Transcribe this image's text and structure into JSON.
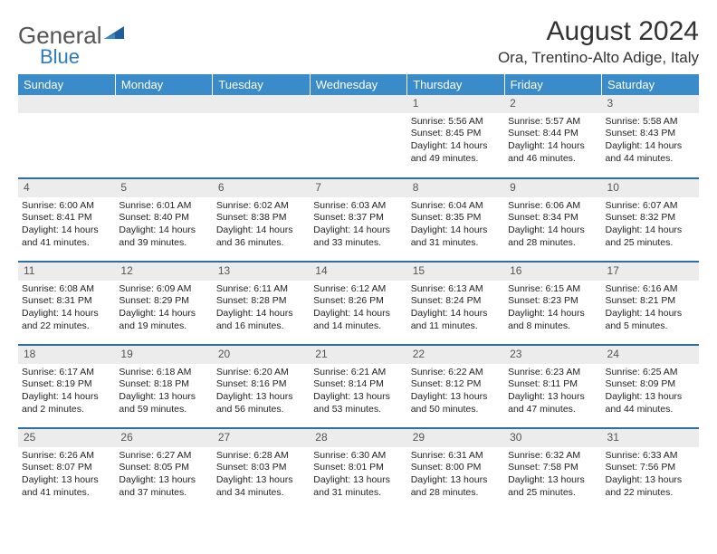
{
  "brand": {
    "first": "General",
    "second": "Blue"
  },
  "title": "August 2024",
  "location": "Ora, Trentino-Alto Adige, Italy",
  "colors": {
    "header_bg": "#3a8bc9",
    "header_text": "#ffffff",
    "row_border": "#2f6da3",
    "daynum_bg": "#ececec",
    "logo_triangle": "#1e5fa0"
  },
  "fonts": {
    "title_size": 30,
    "location_size": 17,
    "header_size": 13,
    "cell_size": 10.5
  },
  "weekdays": [
    "Sunday",
    "Monday",
    "Tuesday",
    "Wednesday",
    "Thursday",
    "Friday",
    "Saturday"
  ],
  "weeks": [
    [
      null,
      null,
      null,
      null,
      {
        "n": "1",
        "sr": "Sunrise: 5:56 AM",
        "ss": "Sunset: 8:45 PM",
        "d1": "Daylight: 14 hours",
        "d2": "and 49 minutes."
      },
      {
        "n": "2",
        "sr": "Sunrise: 5:57 AM",
        "ss": "Sunset: 8:44 PM",
        "d1": "Daylight: 14 hours",
        "d2": "and 46 minutes."
      },
      {
        "n": "3",
        "sr": "Sunrise: 5:58 AM",
        "ss": "Sunset: 8:43 PM",
        "d1": "Daylight: 14 hours",
        "d2": "and 44 minutes."
      }
    ],
    [
      {
        "n": "4",
        "sr": "Sunrise: 6:00 AM",
        "ss": "Sunset: 8:41 PM",
        "d1": "Daylight: 14 hours",
        "d2": "and 41 minutes."
      },
      {
        "n": "5",
        "sr": "Sunrise: 6:01 AM",
        "ss": "Sunset: 8:40 PM",
        "d1": "Daylight: 14 hours",
        "d2": "and 39 minutes."
      },
      {
        "n": "6",
        "sr": "Sunrise: 6:02 AM",
        "ss": "Sunset: 8:38 PM",
        "d1": "Daylight: 14 hours",
        "d2": "and 36 minutes."
      },
      {
        "n": "7",
        "sr": "Sunrise: 6:03 AM",
        "ss": "Sunset: 8:37 PM",
        "d1": "Daylight: 14 hours",
        "d2": "and 33 minutes."
      },
      {
        "n": "8",
        "sr": "Sunrise: 6:04 AM",
        "ss": "Sunset: 8:35 PM",
        "d1": "Daylight: 14 hours",
        "d2": "and 31 minutes."
      },
      {
        "n": "9",
        "sr": "Sunrise: 6:06 AM",
        "ss": "Sunset: 8:34 PM",
        "d1": "Daylight: 14 hours",
        "d2": "and 28 minutes."
      },
      {
        "n": "10",
        "sr": "Sunrise: 6:07 AM",
        "ss": "Sunset: 8:32 PM",
        "d1": "Daylight: 14 hours",
        "d2": "and 25 minutes."
      }
    ],
    [
      {
        "n": "11",
        "sr": "Sunrise: 6:08 AM",
        "ss": "Sunset: 8:31 PM",
        "d1": "Daylight: 14 hours",
        "d2": "and 22 minutes."
      },
      {
        "n": "12",
        "sr": "Sunrise: 6:09 AM",
        "ss": "Sunset: 8:29 PM",
        "d1": "Daylight: 14 hours",
        "d2": "and 19 minutes."
      },
      {
        "n": "13",
        "sr": "Sunrise: 6:11 AM",
        "ss": "Sunset: 8:28 PM",
        "d1": "Daylight: 14 hours",
        "d2": "and 16 minutes."
      },
      {
        "n": "14",
        "sr": "Sunrise: 6:12 AM",
        "ss": "Sunset: 8:26 PM",
        "d1": "Daylight: 14 hours",
        "d2": "and 14 minutes."
      },
      {
        "n": "15",
        "sr": "Sunrise: 6:13 AM",
        "ss": "Sunset: 8:24 PM",
        "d1": "Daylight: 14 hours",
        "d2": "and 11 minutes."
      },
      {
        "n": "16",
        "sr": "Sunrise: 6:15 AM",
        "ss": "Sunset: 8:23 PM",
        "d1": "Daylight: 14 hours",
        "d2": "and 8 minutes."
      },
      {
        "n": "17",
        "sr": "Sunrise: 6:16 AM",
        "ss": "Sunset: 8:21 PM",
        "d1": "Daylight: 14 hours",
        "d2": "and 5 minutes."
      }
    ],
    [
      {
        "n": "18",
        "sr": "Sunrise: 6:17 AM",
        "ss": "Sunset: 8:19 PM",
        "d1": "Daylight: 14 hours",
        "d2": "and 2 minutes."
      },
      {
        "n": "19",
        "sr": "Sunrise: 6:18 AM",
        "ss": "Sunset: 8:18 PM",
        "d1": "Daylight: 13 hours",
        "d2": "and 59 minutes."
      },
      {
        "n": "20",
        "sr": "Sunrise: 6:20 AM",
        "ss": "Sunset: 8:16 PM",
        "d1": "Daylight: 13 hours",
        "d2": "and 56 minutes."
      },
      {
        "n": "21",
        "sr": "Sunrise: 6:21 AM",
        "ss": "Sunset: 8:14 PM",
        "d1": "Daylight: 13 hours",
        "d2": "and 53 minutes."
      },
      {
        "n": "22",
        "sr": "Sunrise: 6:22 AM",
        "ss": "Sunset: 8:12 PM",
        "d1": "Daylight: 13 hours",
        "d2": "and 50 minutes."
      },
      {
        "n": "23",
        "sr": "Sunrise: 6:23 AM",
        "ss": "Sunset: 8:11 PM",
        "d1": "Daylight: 13 hours",
        "d2": "and 47 minutes."
      },
      {
        "n": "24",
        "sr": "Sunrise: 6:25 AM",
        "ss": "Sunset: 8:09 PM",
        "d1": "Daylight: 13 hours",
        "d2": "and 44 minutes."
      }
    ],
    [
      {
        "n": "25",
        "sr": "Sunrise: 6:26 AM",
        "ss": "Sunset: 8:07 PM",
        "d1": "Daylight: 13 hours",
        "d2": "and 41 minutes."
      },
      {
        "n": "26",
        "sr": "Sunrise: 6:27 AM",
        "ss": "Sunset: 8:05 PM",
        "d1": "Daylight: 13 hours",
        "d2": "and 37 minutes."
      },
      {
        "n": "27",
        "sr": "Sunrise: 6:28 AM",
        "ss": "Sunset: 8:03 PM",
        "d1": "Daylight: 13 hours",
        "d2": "and 34 minutes."
      },
      {
        "n": "28",
        "sr": "Sunrise: 6:30 AM",
        "ss": "Sunset: 8:01 PM",
        "d1": "Daylight: 13 hours",
        "d2": "and 31 minutes."
      },
      {
        "n": "29",
        "sr": "Sunrise: 6:31 AM",
        "ss": "Sunset: 8:00 PM",
        "d1": "Daylight: 13 hours",
        "d2": "and 28 minutes."
      },
      {
        "n": "30",
        "sr": "Sunrise: 6:32 AM",
        "ss": "Sunset: 7:58 PM",
        "d1": "Daylight: 13 hours",
        "d2": "and 25 minutes."
      },
      {
        "n": "31",
        "sr": "Sunrise: 6:33 AM",
        "ss": "Sunset: 7:56 PM",
        "d1": "Daylight: 13 hours",
        "d2": "and 22 minutes."
      }
    ]
  ]
}
